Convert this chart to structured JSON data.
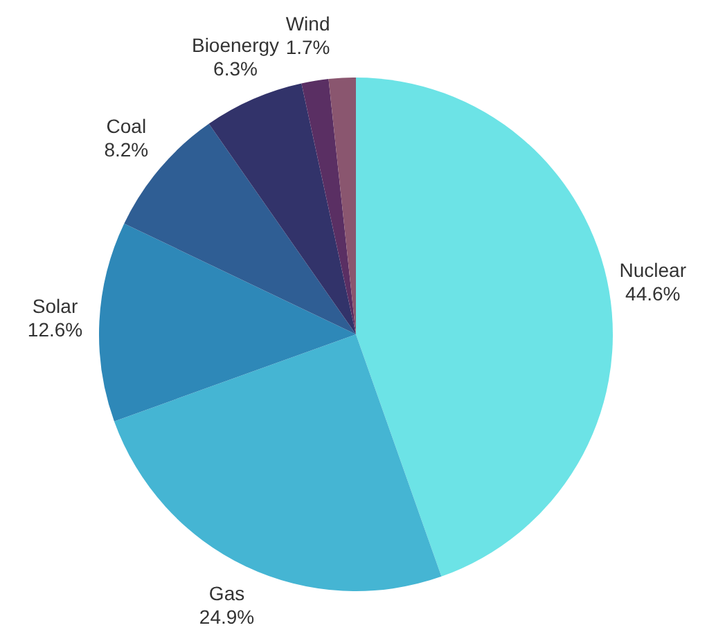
{
  "chart_data": {
    "type": "pie",
    "categories": [
      "Nuclear",
      "Gas",
      "Solar",
      "Coal",
      "Bioenergy",
      "Wind",
      null
    ],
    "values": [
      44.6,
      24.9,
      12.6,
      8.2,
      6.3,
      1.7,
      1.7
    ],
    "value_labels": [
      "44.6%",
      "24.9%",
      "12.6%",
      "8.2%",
      "6.3%",
      "1.7%",
      null
    ],
    "colors": [
      "#6ce3e6",
      "#45b5d3",
      "#2e88b8",
      "#2f5e94",
      "#32336a",
      "#5a2f63",
      "#8a566f"
    ],
    "legend": false
  }
}
